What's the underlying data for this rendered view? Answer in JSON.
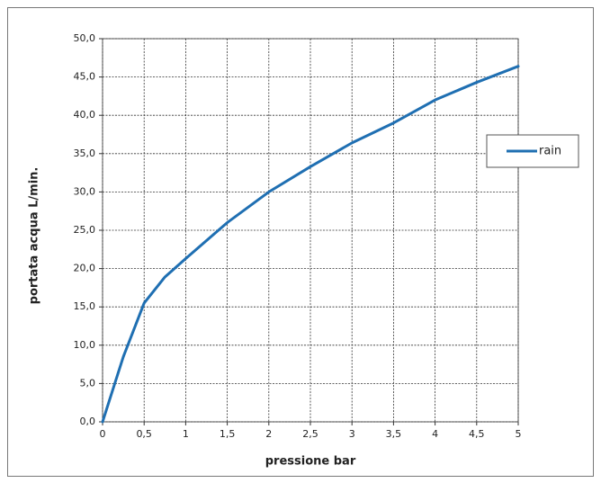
{
  "chart_data": {
    "type": "line",
    "xlabel": "pressione bar",
    "ylabel": "portata acqua  L/min.",
    "x": [
      0,
      0.25,
      0.5,
      0.75,
      1,
      1.5,
      2,
      2.5,
      3,
      3.5,
      4,
      4.5,
      5
    ],
    "series": [
      {
        "name": "rain",
        "color": "#1f6fb2",
        "values": [
          0,
          8.5,
          15.5,
          18.9,
          21.3,
          26.0,
          30.0,
          33.3,
          36.4,
          39.0,
          42.0,
          44.3,
          46.4
        ]
      }
    ],
    "xlim": [
      0,
      5
    ],
    "xticks": [
      0,
      {
        "value": 0.5,
        "label": "0,5"
      },
      1,
      {
        "value": 1.5,
        "label": "1,5"
      },
      2,
      {
        "value": 2.5,
        "label": "2,5"
      },
      3,
      {
        "value": 3.5,
        "label": "3,5"
      },
      4,
      {
        "value": 4.5,
        "label": "4,5"
      },
      5
    ],
    "ylim": [
      0,
      50
    ],
    "yticks": [
      {
        "value": 0,
        "label": "0,0"
      },
      {
        "value": 5,
        "label": "5,0"
      },
      {
        "value": 10,
        "label": "10,0"
      },
      {
        "value": 15,
        "label": "15,0"
      },
      {
        "value": 20,
        "label": "20,0"
      },
      {
        "value": 25,
        "label": "25,0"
      },
      {
        "value": 30,
        "label": "30,0"
      },
      {
        "value": 35,
        "label": "35,0"
      },
      {
        "value": 40,
        "label": "40,0"
      },
      {
        "value": 45,
        "label": "45,0"
      },
      {
        "value": 50,
        "label": "50,0"
      }
    ],
    "grid": true,
    "legend": "right"
  }
}
